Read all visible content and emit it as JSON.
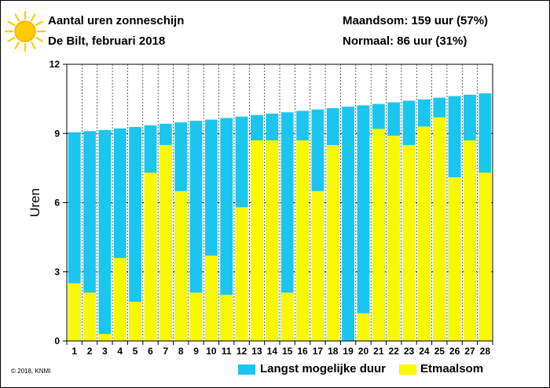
{
  "header": {
    "title": "Aantal uren zonneschijn",
    "subtitle": "De Bilt, februari 2018",
    "monthly_total": "Maandsom: 159 uur (57%)",
    "normal": "Normaal: 86 uur (31%)"
  },
  "footer": {
    "copyright": "© 2018, KNMI"
  },
  "icons": {
    "sun": "sun-icon"
  },
  "colors": {
    "possible": "#1ac6ef",
    "actual": "#f8f800",
    "sun": "#ffcc00",
    "sun_core": "#ffaa00",
    "grid": "#000000"
  },
  "chart_data": {
    "type": "bar",
    "title": "Aantal uren zonneschijn",
    "ylabel": "Uren",
    "xlabel": "",
    "ylim": [
      0,
      12
    ],
    "yticks": [
      0,
      3,
      6,
      9,
      12
    ],
    "grid": true,
    "legend_position": "bottom",
    "categories": [
      "1",
      "2",
      "3",
      "4",
      "5",
      "6",
      "7",
      "8",
      "9",
      "10",
      "11",
      "12",
      "13",
      "14",
      "15",
      "16",
      "17",
      "18",
      "19",
      "20",
      "21",
      "22",
      "23",
      "24",
      "25",
      "26",
      "27",
      "28"
    ],
    "series": [
      {
        "name": "Langst mogelijke duur",
        "color": "#1ac6ef",
        "values": [
          9.05,
          9.1,
          9.15,
          9.22,
          9.28,
          9.35,
          9.42,
          9.48,
          9.55,
          9.6,
          9.67,
          9.73,
          9.8,
          9.86,
          9.92,
          9.98,
          10.04,
          10.1,
          10.16,
          10.22,
          10.28,
          10.35,
          10.42,
          10.48,
          10.55,
          10.62,
          10.68,
          10.74
        ]
      },
      {
        "name": "Etmaalsom",
        "color": "#f8f800",
        "values": [
          2.5,
          2.1,
          0.3,
          3.6,
          1.7,
          7.3,
          8.5,
          6.5,
          2.1,
          3.7,
          2.0,
          5.8,
          8.7,
          8.7,
          2.1,
          8.7,
          6.5,
          8.5,
          0.0,
          1.2,
          9.2,
          8.9,
          8.5,
          9.3,
          9.7,
          7.1,
          8.7,
          7.3
        ]
      }
    ]
  }
}
